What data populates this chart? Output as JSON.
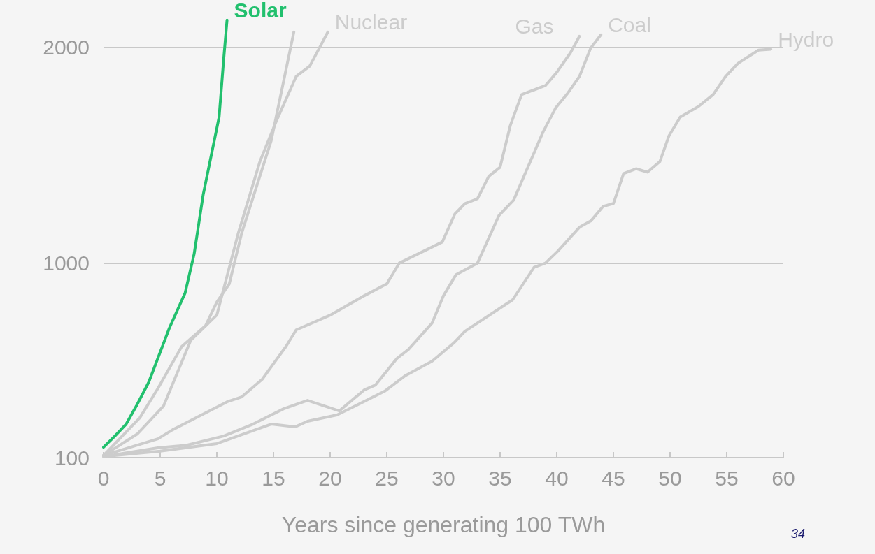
{
  "chart_data": {
    "type": "line",
    "xlabel": "Years since generating 100 TWh",
    "xlim": [
      0,
      60
    ],
    "xticks": [
      0,
      5,
      10,
      15,
      20,
      25,
      30,
      35,
      40,
      45,
      50,
      55,
      60
    ],
    "ylim": [
      100,
      2150
    ],
    "yticks": [
      100,
      1000,
      2000
    ],
    "grid": "y",
    "marker": "none",
    "line_style": "solid",
    "annotations": [
      "34"
    ],
    "series": [
      {
        "name": "Hydro",
        "color": "#cccccc",
        "x": [
          0,
          5,
          10,
          14.8,
          16.9,
          18,
          20.6,
          24.8,
          26.6,
          29,
          30.9,
          31.9,
          36.1,
          38,
          39,
          40.1,
          42,
          43,
          44.1,
          45,
          45.9,
          47,
          48,
          49.1,
          49.9,
          50.9,
          52.5,
          53.8,
          54.9,
          56,
          57.8,
          58.9
        ],
        "values": [
          105,
          130,
          165,
          255,
          242,
          268,
          297,
          407,
          478,
          546,
          630,
          685,
          830,
          981,
          1000,
          1056,
          1166,
          1195,
          1263,
          1276,
          1415,
          1437,
          1421,
          1470,
          1589,
          1676,
          1725,
          1780,
          1864,
          1925,
          1986,
          1990
        ]
      },
      {
        "name": "Coal",
        "color": "#cccccc",
        "x": [
          0,
          4.8,
          7.4,
          10.6,
          13.2,
          15.9,
          18,
          20.8,
          23,
          24,
          25.9,
          26.9,
          29,
          30,
          31.1,
          33,
          34.9,
          36.2,
          38.8,
          39.9,
          41,
          42,
          43,
          43.9
        ],
        "values": [
          105,
          145,
          158,
          200,
          255,
          326,
          365,
          316,
          413,
          436,
          559,
          600,
          723,
          849,
          946,
          1000,
          1221,
          1292,
          1608,
          1718,
          1789,
          1864,
          1996,
          2057
        ]
      },
      {
        "name": "Gas",
        "color": "#cccccc",
        "x": [
          0,
          4.8,
          6.1,
          10.9,
          12.2,
          14,
          16.1,
          17,
          20,
          23,
          25,
          26.1,
          29.9,
          31,
          31.9,
          33,
          34,
          35,
          35.9,
          36.9,
          39,
          40,
          41.2,
          42
        ],
        "values": [
          110,
          187,
          229,
          358,
          381,
          462,
          614,
          691,
          759,
          849,
          904,
          1000,
          1098,
          1227,
          1276,
          1298,
          1402,
          1444,
          1637,
          1780,
          1822,
          1883,
          1973,
          2050
        ]
      },
      {
        "name": "Nuclear",
        "color": "#cccccc",
        "x": [
          0,
          3,
          5.3,
          7.7,
          10,
          11.9,
          13.8,
          15.3,
          17,
          18.2,
          19.8
        ],
        "values": [
          110,
          210,
          339,
          643,
          760,
          1140,
          1470,
          1663,
          1864,
          1912,
          2070
        ]
      },
      {
        "color": "#cccccc",
        "x": [
          0,
          3.2,
          4.8,
          6.9,
          9,
          10,
          11.1,
          12.2,
          14.8,
          16.8
        ],
        "values": [
          110,
          284,
          420,
          614,
          710,
          820,
          904,
          1140,
          1567,
          2070
        ]
      },
      {
        "name": "Solar",
        "color": "#22c06e",
        "x": [
          0,
          1,
          2,
          2.9,
          4,
          5.8,
          7.2,
          8,
          8.8,
          10.2,
          10.6,
          10.9
        ],
        "values": [
          148,
          200,
          255,
          339,
          450,
          698,
          862,
          1043,
          1318,
          1676,
          1941,
          2125
        ]
      }
    ]
  }
}
